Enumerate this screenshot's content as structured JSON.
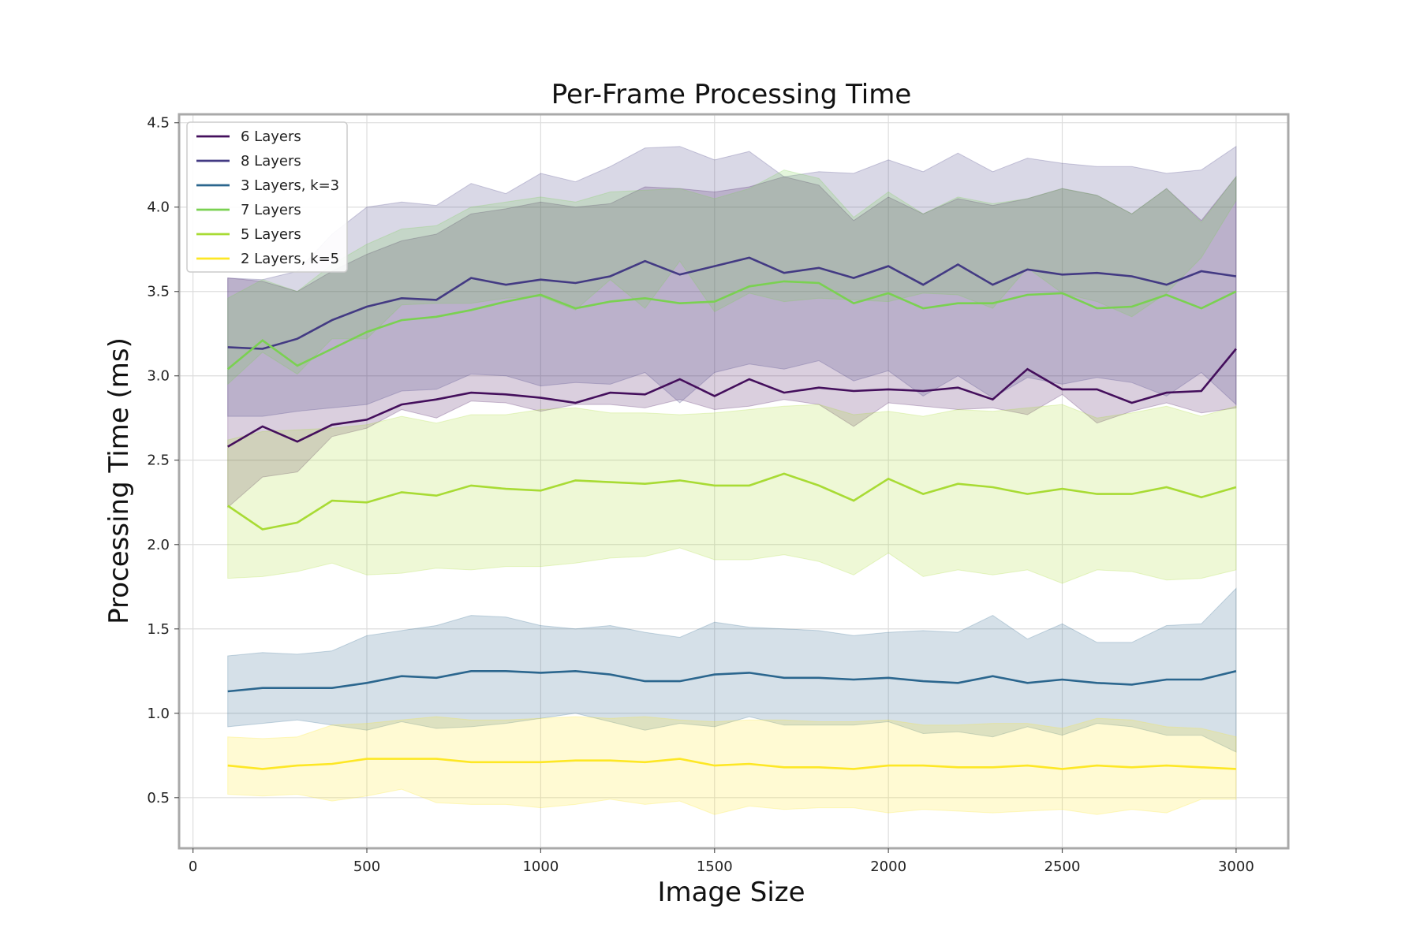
{
  "chart_data": {
    "type": "line",
    "title": "Per-Frame Processing Time",
    "xlabel": "Image Size",
    "ylabel": "Processing Time (ms)",
    "xlim": [
      -40,
      3150
    ],
    "ylim": [
      0.2,
      4.55
    ],
    "xticks": [
      0,
      500,
      1000,
      1500,
      2000,
      2500,
      3000
    ],
    "xtick_labels": [
      "0",
      "500",
      "1000",
      "1500",
      "2000",
      "2500",
      "3000"
    ],
    "yticks": [
      0.5,
      1.0,
      1.5,
      2.0,
      2.5,
      3.0,
      3.5,
      4.0,
      4.5
    ],
    "ytick_labels": [
      "0.5",
      "1.0",
      "1.5",
      "2.0",
      "2.5",
      "3.0",
      "3.5",
      "4.0",
      "4.5"
    ],
    "grid": true,
    "legend_position": "top-left",
    "x": [
      100,
      200,
      300,
      400,
      500,
      600,
      700,
      800,
      900,
      1000,
      1100,
      1200,
      1300,
      1400,
      1500,
      1600,
      1700,
      1800,
      1900,
      2000,
      2100,
      2200,
      2300,
      2400,
      2500,
      2600,
      2700,
      2800,
      2900,
      3000
    ],
    "series": [
      {
        "name": "6 Layers",
        "color": "#440f5c",
        "values": [
          2.58,
          2.7,
          2.61,
          2.71,
          2.74,
          2.83,
          2.86,
          2.9,
          2.89,
          2.87,
          2.84,
          2.9,
          2.89,
          2.98,
          2.88,
          2.98,
          2.9,
          2.93,
          2.91,
          2.92,
          2.91,
          2.93,
          2.86,
          3.04,
          2.92,
          2.92,
          2.84,
          2.9,
          2.91,
          3.16
        ],
        "band_upper": [
          3.58,
          3.56,
          3.5,
          3.62,
          3.72,
          3.8,
          3.84,
          3.96,
          3.99,
          4.03,
          4.0,
          4.02,
          4.12,
          4.11,
          4.09,
          4.12,
          4.18,
          4.13,
          3.92,
          4.06,
          3.96,
          4.05,
          4.01,
          4.05,
          4.11,
          4.07,
          3.96,
          4.11,
          3.92,
          4.18
        ],
        "band_lower": [
          2.22,
          2.4,
          2.43,
          2.64,
          2.69,
          2.8,
          2.75,
          2.85,
          2.84,
          2.79,
          2.83,
          2.83,
          2.81,
          2.86,
          2.8,
          2.82,
          2.86,
          2.83,
          2.7,
          2.84,
          2.82,
          2.8,
          2.81,
          2.77,
          2.89,
          2.72,
          2.79,
          2.84,
          2.78,
          2.81
        ]
      },
      {
        "name": "8 Layers",
        "color": "#433a83",
        "values": [
          3.17,
          3.16,
          3.22,
          3.33,
          3.41,
          3.46,
          3.45,
          3.58,
          3.54,
          3.57,
          3.55,
          3.59,
          3.68,
          3.6,
          3.65,
          3.7,
          3.61,
          3.64,
          3.58,
          3.65,
          3.54,
          3.66,
          3.54,
          3.63,
          3.6,
          3.61,
          3.59,
          3.54,
          3.62,
          3.59
        ],
        "band_upper": [
          3.58,
          3.57,
          3.62,
          3.84,
          4.0,
          4.03,
          4.01,
          4.14,
          4.08,
          4.2,
          4.15,
          4.24,
          4.35,
          4.36,
          4.28,
          4.33,
          4.18,
          4.21,
          4.2,
          4.28,
          4.21,
          4.32,
          4.21,
          4.29,
          4.26,
          4.24,
          4.24,
          4.2,
          4.22,
          4.36
        ],
        "band_lower": [
          2.76,
          2.76,
          2.79,
          2.81,
          2.83,
          2.91,
          2.92,
          3.01,
          3.0,
          2.94,
          2.96,
          2.95,
          3.02,
          2.84,
          3.02,
          3.07,
          3.04,
          3.09,
          2.97,
          3.03,
          2.88,
          3.0,
          2.87,
          2.99,
          2.95,
          2.99,
          2.96,
          2.88,
          3.02,
          2.83
        ]
      },
      {
        "name": "3 Layers, k=3",
        "color": "#2b668e",
        "values": [
          1.13,
          1.15,
          1.15,
          1.15,
          1.18,
          1.22,
          1.21,
          1.25,
          1.25,
          1.24,
          1.25,
          1.23,
          1.19,
          1.19,
          1.23,
          1.24,
          1.21,
          1.21,
          1.2,
          1.21,
          1.19,
          1.18,
          1.22,
          1.18,
          1.2,
          1.18,
          1.17,
          1.2,
          1.2,
          1.25
        ],
        "band_upper": [
          1.34,
          1.36,
          1.35,
          1.37,
          1.46,
          1.49,
          1.52,
          1.58,
          1.57,
          1.52,
          1.5,
          1.52,
          1.48,
          1.45,
          1.54,
          1.51,
          1.5,
          1.49,
          1.46,
          1.48,
          1.49,
          1.48,
          1.58,
          1.44,
          1.53,
          1.42,
          1.42,
          1.52,
          1.53,
          1.74
        ],
        "band_lower": [
          0.92,
          0.94,
          0.96,
          0.93,
          0.9,
          0.95,
          0.91,
          0.92,
          0.94,
          0.97,
          1.0,
          0.95,
          0.9,
          0.94,
          0.92,
          0.98,
          0.93,
          0.93,
          0.93,
          0.95,
          0.88,
          0.89,
          0.86,
          0.92,
          0.87,
          0.94,
          0.92,
          0.87,
          0.87,
          0.77
        ]
      },
      {
        "name": "7 Layers",
        "color": "#7ad151",
        "values": [
          3.04,
          3.21,
          3.06,
          3.16,
          3.26,
          3.33,
          3.35,
          3.39,
          3.44,
          3.48,
          3.4,
          3.44,
          3.46,
          3.43,
          3.44,
          3.53,
          3.56,
          3.55,
          3.43,
          3.49,
          3.4,
          3.43,
          3.43,
          3.48,
          3.49,
          3.4,
          3.41,
          3.48,
          3.4,
          3.5
        ],
        "band_upper": [
          3.46,
          3.57,
          3.5,
          3.66,
          3.78,
          3.87,
          3.89,
          4.0,
          4.03,
          4.06,
          4.03,
          4.09,
          4.1,
          4.11,
          4.05,
          4.11,
          4.22,
          4.17,
          3.94,
          4.09,
          3.96,
          4.06,
          4.02,
          4.05,
          4.11,
          4.07,
          3.96,
          4.11,
          3.91,
          4.18
        ],
        "band_lower": [
          2.95,
          3.14,
          3.01,
          3.22,
          3.22,
          3.42,
          3.43,
          3.43,
          3.46,
          3.47,
          3.39,
          3.57,
          3.4,
          3.68,
          3.38,
          3.49,
          3.44,
          3.46,
          3.45,
          3.44,
          3.49,
          3.48,
          3.4,
          3.64,
          3.49,
          3.44,
          3.35,
          3.49,
          3.7,
          4.04
        ]
      },
      {
        "name": "5 Layers",
        "color": "#a8db34",
        "values": [
          2.23,
          2.09,
          2.13,
          2.26,
          2.25,
          2.31,
          2.29,
          2.35,
          2.33,
          2.32,
          2.38,
          2.37,
          2.36,
          2.38,
          2.35,
          2.35,
          2.42,
          2.35,
          2.26,
          2.39,
          2.3,
          2.36,
          2.34,
          2.3,
          2.33,
          2.3,
          2.3,
          2.34,
          2.28,
          2.34
        ],
        "band_upper": [
          2.62,
          2.67,
          2.68,
          2.69,
          2.71,
          2.76,
          2.72,
          2.77,
          2.77,
          2.8,
          2.81,
          2.78,
          2.78,
          2.77,
          2.78,
          2.8,
          2.82,
          2.83,
          2.77,
          2.79,
          2.76,
          2.8,
          2.79,
          2.81,
          2.83,
          2.75,
          2.78,
          2.82,
          2.76,
          2.82
        ],
        "band_lower": [
          1.8,
          1.81,
          1.84,
          1.89,
          1.82,
          1.83,
          1.86,
          1.85,
          1.87,
          1.87,
          1.89,
          1.92,
          1.93,
          1.98,
          1.91,
          1.91,
          1.94,
          1.9,
          1.82,
          1.95,
          1.81,
          1.85,
          1.82,
          1.85,
          1.77,
          1.85,
          1.84,
          1.79,
          1.8,
          1.85
        ]
      },
      {
        "name": "2 Layers, k=5",
        "color": "#fde725",
        "values": [
          0.69,
          0.67,
          0.69,
          0.7,
          0.73,
          0.73,
          0.73,
          0.71,
          0.71,
          0.71,
          0.72,
          0.72,
          0.71,
          0.73,
          0.69,
          0.7,
          0.68,
          0.68,
          0.67,
          0.69,
          0.69,
          0.68,
          0.68,
          0.69,
          0.67,
          0.69,
          0.68,
          0.69,
          0.68,
          0.67
        ],
        "band_upper": [
          0.86,
          0.85,
          0.86,
          0.93,
          0.94,
          0.96,
          0.98,
          0.96,
          0.96,
          0.97,
          0.98,
          0.97,
          0.98,
          0.96,
          0.95,
          0.96,
          0.96,
          0.95,
          0.95,
          0.96,
          0.93,
          0.93,
          0.94,
          0.94,
          0.91,
          0.97,
          0.96,
          0.92,
          0.91,
          0.86
        ],
        "band_lower": [
          0.52,
          0.51,
          0.52,
          0.48,
          0.51,
          0.55,
          0.47,
          0.46,
          0.46,
          0.44,
          0.46,
          0.49,
          0.46,
          0.48,
          0.4,
          0.45,
          0.43,
          0.44,
          0.44,
          0.41,
          0.43,
          0.42,
          0.41,
          0.42,
          0.43,
          0.4,
          0.43,
          0.41,
          0.49,
          0.49
        ]
      }
    ]
  }
}
